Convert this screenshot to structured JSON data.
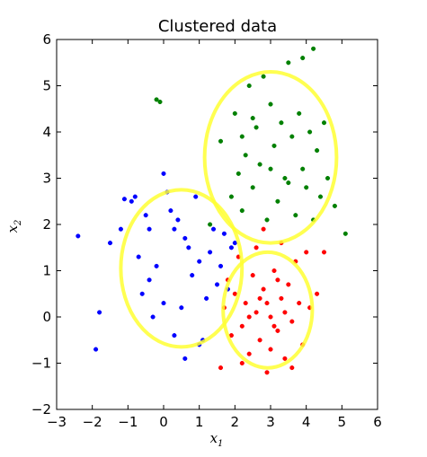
{
  "chart_data": {
    "type": "scatter",
    "title": "Clustered data",
    "xlabel": "x",
    "xlabel_sub": "1",
    "ylabel": "x",
    "ylabel_sub": "2",
    "xlim": [
      -3,
      6
    ],
    "ylim": [
      -2,
      6
    ],
    "xticks": [
      -3,
      -2,
      -1,
      0,
      1,
      2,
      3,
      4,
      5,
      6
    ],
    "yticks": [
      -2,
      -1,
      0,
      1,
      2,
      3,
      4,
      5,
      6
    ],
    "xtick_labels": [
      "−3",
      "−2",
      "−1",
      "0",
      "1",
      "2",
      "3",
      "4",
      "5",
      "6"
    ],
    "ytick_labels": [
      "−2",
      "−1",
      "0",
      "1",
      "2",
      "3",
      "4",
      "5",
      "6"
    ],
    "grid": false,
    "series": [
      {
        "color": "#0000ff",
        "center": [
          0.5,
          1.1
        ],
        "points": [
          [
            -2.4,
            1.75
          ],
          [
            -1.9,
            -0.7
          ],
          [
            -1.8,
            0.1
          ],
          [
            -1.5,
            1.6
          ],
          [
            -1.2,
            1.9
          ],
          [
            -1.1,
            2.55
          ],
          [
            -0.9,
            2.5
          ],
          [
            -0.8,
            2.6
          ],
          [
            -0.7,
            1.3
          ],
          [
            -0.6,
            0.5
          ],
          [
            -0.5,
            2.2
          ],
          [
            -0.4,
            1.9
          ],
          [
            -0.3,
            0.0
          ],
          [
            -0.2,
            1.1
          ],
          [
            0.0,
            3.1
          ],
          [
            0.1,
            2.7
          ],
          [
            0.2,
            2.3
          ],
          [
            0.3,
            1.9
          ],
          [
            0.4,
            2.1
          ],
          [
            0.5,
            0.2
          ],
          [
            0.6,
            1.7
          ],
          [
            0.7,
            1.5
          ],
          [
            0.8,
            0.9
          ],
          [
            0.9,
            2.6
          ],
          [
            1.0,
            1.2
          ],
          [
            1.1,
            -0.5
          ],
          [
            1.2,
            0.4
          ],
          [
            1.3,
            1.4
          ],
          [
            1.4,
            1.9
          ],
          [
            1.5,
            0.7
          ],
          [
            1.6,
            1.1
          ],
          [
            1.7,
            1.8
          ],
          [
            1.8,
            0.6
          ],
          [
            1.9,
            1.5
          ],
          [
            2.0,
            1.6
          ],
          [
            0.6,
            -0.9
          ],
          [
            1.0,
            -0.6
          ],
          [
            0.3,
            -0.4
          ],
          [
            -0.4,
            0.8
          ],
          [
            0.0,
            0.3
          ]
        ]
      },
      {
        "color": "#008000",
        "center": [
          3.3,
          3.5
        ],
        "points": [
          [
            -0.2,
            4.7
          ],
          [
            -0.1,
            4.65
          ],
          [
            1.3,
            2.0
          ],
          [
            1.6,
            3.8
          ],
          [
            1.9,
            2.6
          ],
          [
            2.0,
            4.4
          ],
          [
            2.1,
            3.1
          ],
          [
            2.2,
            2.3
          ],
          [
            2.3,
            3.5
          ],
          [
            2.4,
            5.0
          ],
          [
            2.5,
            2.8
          ],
          [
            2.6,
            4.1
          ],
          [
            2.7,
            3.3
          ],
          [
            2.8,
            5.2
          ],
          [
            2.9,
            2.1
          ],
          [
            3.0,
            4.6
          ],
          [
            3.1,
            3.7
          ],
          [
            3.2,
            2.5
          ],
          [
            3.3,
            4.2
          ],
          [
            3.4,
            3.0
          ],
          [
            3.5,
            5.5
          ],
          [
            3.6,
            3.9
          ],
          [
            3.7,
            2.2
          ],
          [
            3.8,
            4.4
          ],
          [
            3.9,
            3.2
          ],
          [
            4.0,
            2.8
          ],
          [
            4.1,
            4.0
          ],
          [
            4.2,
            5.8
          ],
          [
            4.3,
            3.6
          ],
          [
            4.4,
            2.6
          ],
          [
            4.5,
            4.2
          ],
          [
            4.6,
            3.0
          ],
          [
            4.8,
            2.4
          ],
          [
            5.1,
            1.8
          ],
          [
            3.9,
            5.6
          ],
          [
            4.2,
            2.1
          ],
          [
            2.5,
            4.3
          ],
          [
            3.0,
            3.2
          ],
          [
            3.5,
            2.9
          ],
          [
            2.2,
            3.9
          ]
        ]
      },
      {
        "color": "#ff0000",
        "center": [
          2.9,
          0.1
        ],
        "points": [
          [
            1.6,
            -1.1
          ],
          [
            1.7,
            0.2
          ],
          [
            1.8,
            0.8
          ],
          [
            1.9,
            -0.4
          ],
          [
            2.0,
            0.5
          ],
          [
            2.1,
            1.3
          ],
          [
            2.2,
            -0.2
          ],
          [
            2.3,
            0.3
          ],
          [
            2.4,
            -0.8
          ],
          [
            2.5,
            0.9
          ],
          [
            2.6,
            0.1
          ],
          [
            2.7,
            -0.5
          ],
          [
            2.8,
            0.6
          ],
          [
            2.9,
            -1.2
          ],
          [
            3.0,
            0.0
          ],
          [
            3.1,
            1.0
          ],
          [
            3.2,
            -0.3
          ],
          [
            3.3,
            0.4
          ],
          [
            3.4,
            -0.9
          ],
          [
            3.5,
            0.7
          ],
          [
            3.6,
            -0.1
          ],
          [
            3.7,
            1.2
          ],
          [
            3.8,
            0.3
          ],
          [
            3.9,
            -0.6
          ],
          [
            4.0,
            1.4
          ],
          [
            4.1,
            0.2
          ],
          [
            4.3,
            0.5
          ],
          [
            4.5,
            1.4
          ],
          [
            2.8,
            1.9
          ],
          [
            3.3,
            1.6
          ],
          [
            2.2,
            -1.0
          ],
          [
            3.6,
            -1.1
          ],
          [
            2.6,
            1.5
          ],
          [
            3.0,
            -0.7
          ],
          [
            2.4,
            0.0
          ],
          [
            3.2,
            0.8
          ],
          [
            2.9,
            0.3
          ],
          [
            3.1,
            -0.2
          ],
          [
            2.7,
            0.4
          ],
          [
            3.4,
            0.1
          ]
        ]
      }
    ],
    "circles": [
      {
        "color": "#ffff33",
        "center": [
          3.0,
          3.45
        ],
        "radius": 1.85
      },
      {
        "color": "#ffff33",
        "center": [
          0.5,
          1.05
        ],
        "radius": 1.7
      },
      {
        "color": "#ffff33",
        "center": [
          2.92,
          0.15
        ],
        "radius": 1.25
      }
    ]
  }
}
